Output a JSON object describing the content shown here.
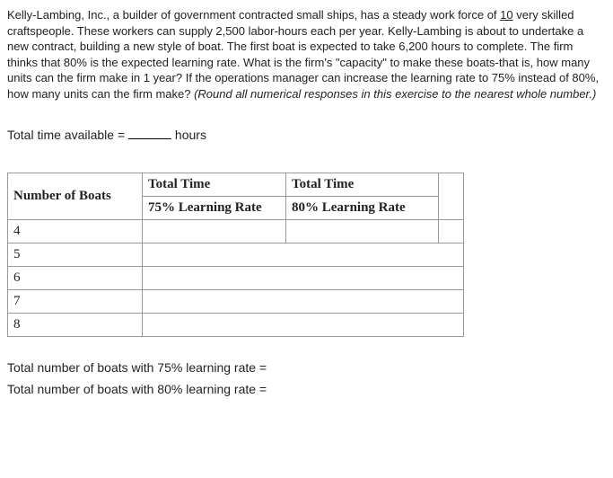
{
  "question": {
    "pre": "Kelly-Lambing, Inc., a builder of government contracted small ships, has a steady work force of ",
    "workforce": "10",
    "post": " very skilled craftspeople. These workers can supply 2,500 labor-hours each per year. Kelly-Lambing is about to undertake a new contract, building a new style of boat. The first boat is expected to take 6,200 hours to complete. The firm thinks that 80% is the expected learning rate. What is the firm's \"capacity\" to make these boats-that is, how many units can the firm make in 1 year? If the operations manager can increase the learning rate to 75% instead of 80%, how many units can the firm make? ",
    "hint": "(Round all numerical responses in this exercise to the nearest whole number.)"
  },
  "total_time_label_pre": "Total time available = ",
  "total_time_label_post": " hours",
  "table": {
    "header_boats": "Number of Boats",
    "header_total_time": "Total Time",
    "header_75": "75% Learning Rate",
    "header_80": "80% Learning Rate",
    "rows": [
      "4",
      "5",
      "6",
      "7",
      "8"
    ]
  },
  "result_75": "Total number of boats with 75% learning rate =",
  "result_80": "Total number of boats with 80% learning rate ="
}
